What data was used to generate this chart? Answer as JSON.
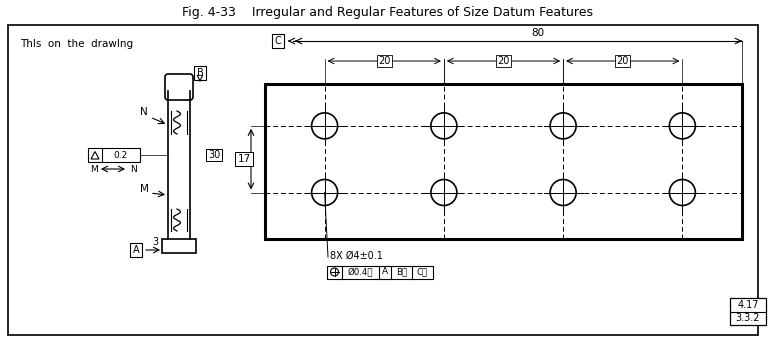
{
  "title": "Fig. 4-33    Irregular and Regular Features of Size Datum Features",
  "subtitle": "ThIs  on  the  drawIng",
  "background": "#ffffff",
  "border_color": "#000000",
  "ref_numbers": [
    "4.17",
    "3.3.2"
  ],
  "dim_80": "80",
  "dim_20s": [
    "20",
    "20",
    "20"
  ],
  "dim_17": "17",
  "dim_30": "30",
  "dim_3": "3",
  "dim_02": "0.2",
  "label_A": "A",
  "label_B": "B",
  "label_C": "C",
  "label_N": "N",
  "label_M": "M",
  "holes_text": "8X Ø4±0.1",
  "hole_rows": 2,
  "hole_cols": 4
}
